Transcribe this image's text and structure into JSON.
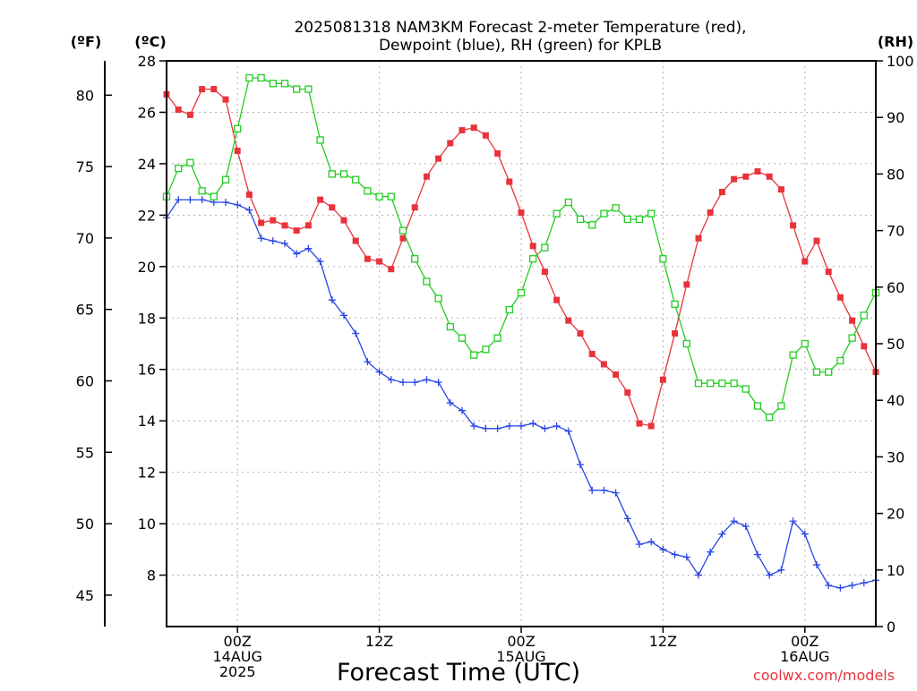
{
  "chart_data": {
    "type": "line",
    "title_lines": [
      "2025081318 NAM3KM Forecast 2-meter Temperature (red),",
      "Dewpoint (blue), RH (green) for KPLB"
    ],
    "xlabel": "Forecast Time (UTC)",
    "credit": "coolwx.com/models",
    "unit_labels": {
      "fahrenheit": "(ºF)",
      "celsius": "(ºC)",
      "rh": "(RH)"
    },
    "x_ticks": [
      {
        "hour": 6,
        "lines": [
          "00Z",
          "14AUG",
          "2025"
        ]
      },
      {
        "hour": 18,
        "lines": [
          "12Z"
        ]
      },
      {
        "hour": 30,
        "lines": [
          "00Z",
          "15AUG"
        ]
      },
      {
        "hour": 42,
        "lines": [
          "12Z"
        ]
      },
      {
        "hour": 54,
        "lines": [
          "00Z",
          "16AUG"
        ]
      }
    ],
    "x_range_hours": [
      0,
      60
    ],
    "celsius_axis": {
      "range": [
        6,
        28
      ],
      "ticks": [
        8,
        10,
        12,
        14,
        16,
        18,
        20,
        22,
        24,
        26,
        28
      ]
    },
    "fahrenheit_axis": {
      "ticks": [
        45,
        50,
        55,
        60,
        65,
        70,
        75,
        80
      ]
    },
    "rh_axis": {
      "range": [
        0,
        100
      ],
      "ticks": [
        0,
        10,
        20,
        30,
        40,
        50,
        60,
        70,
        80,
        90,
        100
      ]
    },
    "grid": true,
    "series": [
      {
        "key": "temperature",
        "axis": "celsius",
        "color": "#e8333b",
        "marker": "filled-square",
        "values": [
          26.7,
          26.1,
          25.9,
          26.9,
          26.9,
          26.5,
          24.5,
          22.8,
          21.7,
          21.8,
          21.6,
          21.4,
          21.6,
          22.6,
          22.3,
          21.8,
          21.0,
          20.3,
          20.2,
          19.9,
          21.1,
          22.3,
          23.5,
          24.2,
          24.8,
          25.3,
          25.4,
          25.1,
          24.4,
          23.3,
          22.1,
          20.8,
          19.8,
          18.7,
          17.9,
          17.4,
          16.6,
          16.2,
          15.8,
          15.1,
          13.9,
          13.8,
          15.6,
          17.4,
          19.3,
          21.1,
          22.1,
          22.9,
          23.4,
          23.5,
          23.7,
          23.5,
          23.0,
          21.6,
          20.2,
          21.0,
          19.8,
          18.8,
          17.9,
          16.9,
          15.9
        ]
      },
      {
        "key": "dewpoint",
        "axis": "celsius",
        "color": "#2846e6",
        "marker": "plus",
        "values": [
          21.9,
          22.6,
          22.6,
          22.6,
          22.5,
          22.5,
          22.4,
          22.2,
          21.1,
          21.0,
          20.9,
          20.5,
          20.7,
          20.2,
          18.7,
          18.1,
          17.4,
          16.3,
          15.9,
          15.6,
          15.5,
          15.5,
          15.6,
          15.5,
          14.7,
          14.4,
          13.8,
          13.7,
          13.7,
          13.8,
          13.8,
          13.9,
          13.7,
          13.8,
          13.6,
          12.3,
          11.3,
          11.3,
          11.2,
          10.2,
          9.2,
          9.3,
          9.0,
          8.8,
          8.7,
          8.0,
          8.9,
          9.6,
          10.1,
          9.9,
          8.8,
          8.0,
          8.2,
          10.1,
          9.6,
          8.4,
          7.6,
          7.5,
          7.6,
          7.7,
          7.8
        ]
      },
      {
        "key": "rh",
        "axis": "rh",
        "color": "#22cc22",
        "marker": "open-square",
        "values": [
          76,
          81,
          82,
          77,
          76,
          79,
          88,
          97,
          97,
          96,
          96,
          95,
          95,
          86,
          80,
          80,
          79,
          77,
          76,
          76,
          70,
          65,
          61,
          58,
          53,
          51,
          48,
          49,
          51,
          56,
          59,
          65,
          67,
          73,
          75,
          72,
          71,
          73,
          74,
          72,
          72,
          73,
          65,
          57,
          50,
          43,
          43,
          43,
          43,
          42,
          39,
          37,
          39,
          48,
          50,
          45,
          45,
          47,
          51,
          55,
          59
        ]
      }
    ]
  }
}
